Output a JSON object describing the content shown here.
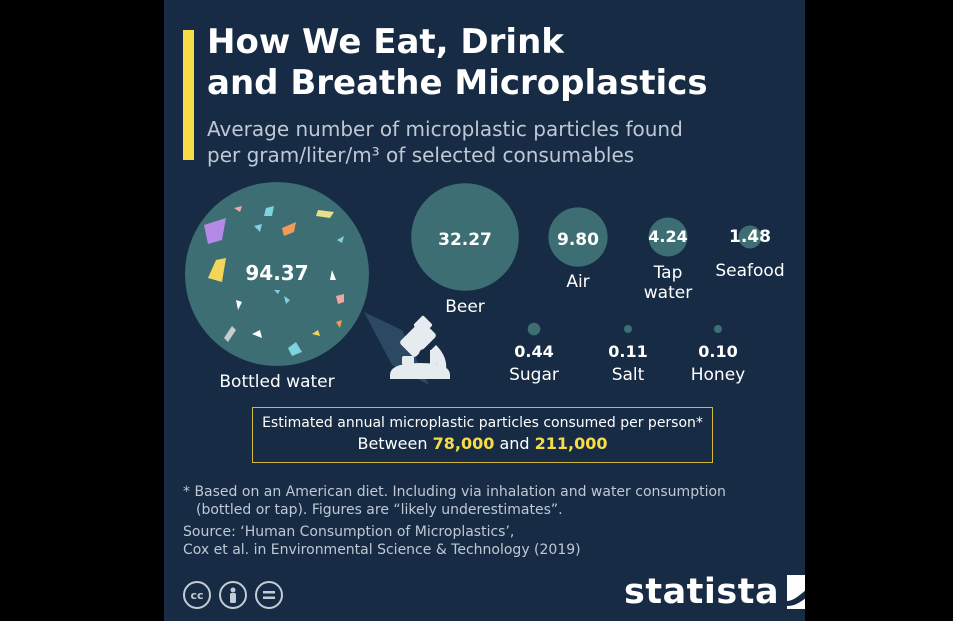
{
  "header": {
    "title_lines": [
      "How We Eat, Drink",
      "and Breathe Microplastics"
    ],
    "subtitle_lines": [
      "Average number of microplastic particles found",
      "per gram/liter/m³ of selected consumables"
    ]
  },
  "chart_data": {
    "type": "bubble",
    "value_key": "microplastic particles",
    "items": [
      {
        "label": "Bottled water",
        "value": 94.37
      },
      {
        "label": "Beer",
        "value": 32.27
      },
      {
        "label": "Air",
        "value": 9.8
      },
      {
        "label": "Tap water",
        "value": 4.24
      },
      {
        "label": "Seafood",
        "value": 1.48
      },
      {
        "label": "Sugar",
        "value": 0.44
      },
      {
        "label": "Salt",
        "value": 0.11
      },
      {
        "label": "Honey",
        "value": 0.1
      }
    ],
    "value_labels": [
      "94.37",
      "32.27",
      "9.80",
      "4.24",
      "1.48",
      "0.44",
      "0.11",
      "0.10"
    ],
    "category_label_lines": [
      [
        "Bottled water"
      ],
      [
        "Beer"
      ],
      [
        "Air"
      ],
      [
        "Tap",
        "water"
      ],
      [
        "Seafood"
      ],
      [
        "Sugar"
      ],
      [
        "Salt"
      ],
      [
        "Honey"
      ]
    ]
  },
  "estimate": {
    "label": "Estimated annual microplastic particles consumed per person*",
    "between": "Between",
    "low": "78,000",
    "and": "and",
    "high": "211,000"
  },
  "footnotes": {
    "note_line1": "* Based on an American diet. Including via inhalation and water consumption",
    "note_line2": "(bottled or tap). Figures are “likely underestimates”.",
    "source_line1": "Source: ‘Human Consumption of Microplastics’,",
    "source_line2": "Cox et al. in Environmental Science & Technology (2019)"
  },
  "branding": {
    "name": "statista",
    "license_icons": [
      "cc-icon",
      "by-icon",
      "nd-icon"
    ]
  },
  "colors": {
    "background": "#172c44",
    "bubble": "#3c6e74",
    "accent": "#f8dc45",
    "text": "#ffffff",
    "muted_text": "#bfc8d4"
  }
}
